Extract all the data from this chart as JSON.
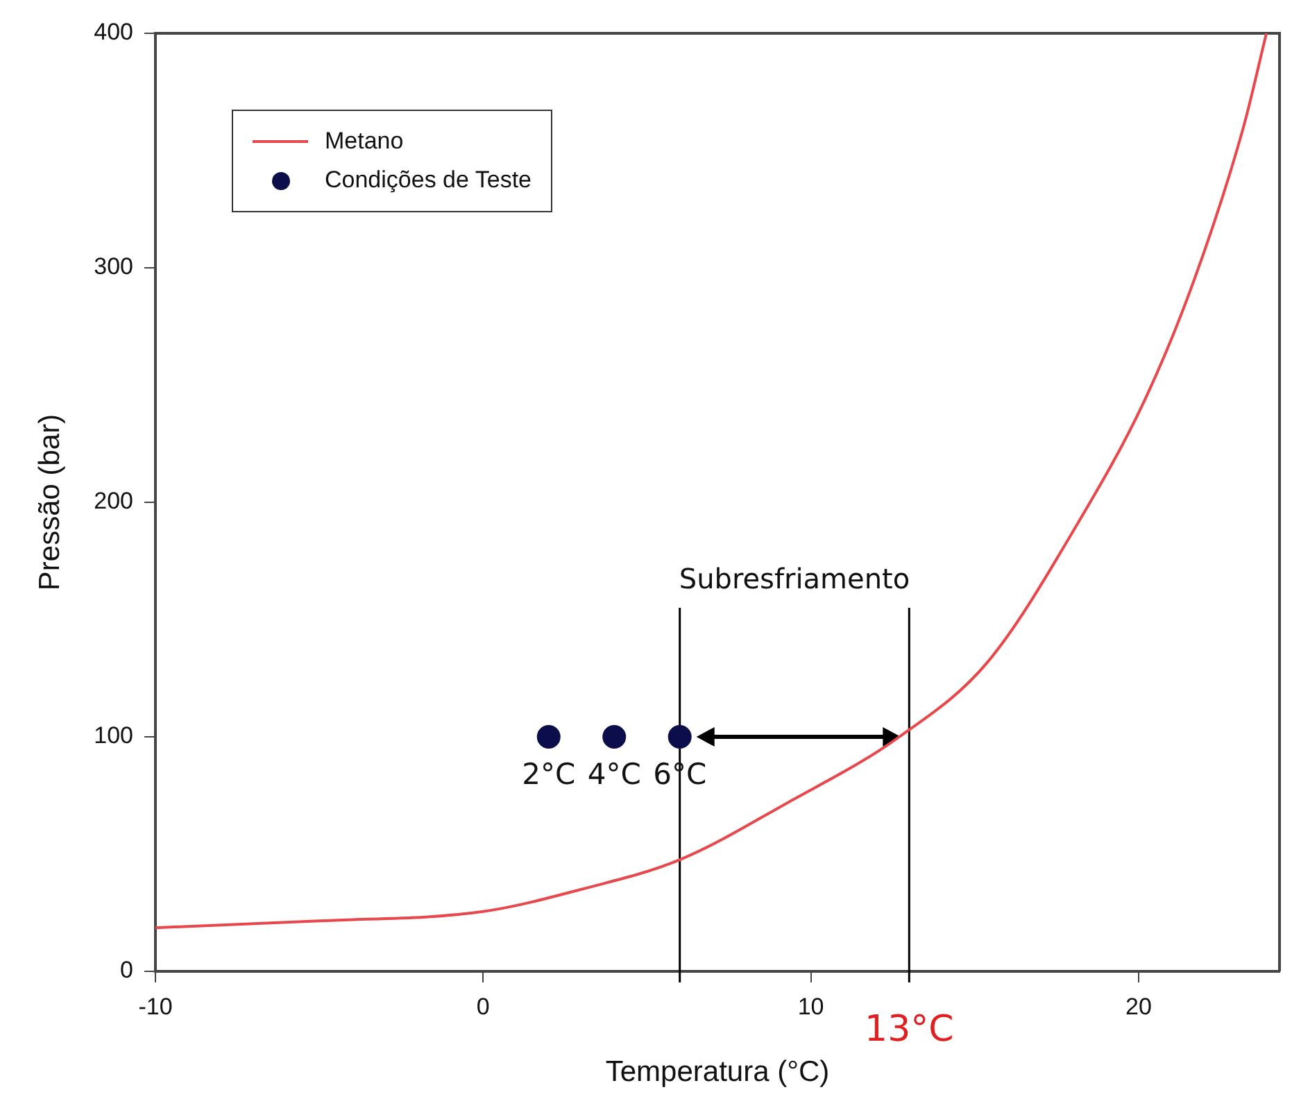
{
  "chart_data": {
    "type": "line",
    "xlabel": "Temperatura (°C)",
    "ylabel": "Pressão (bar)",
    "xlim": [
      -10,
      24.3
    ],
    "xticks": [
      -10,
      0,
      10,
      20
    ],
    "ylim": [
      0,
      400
    ],
    "yticks": [
      0,
      100,
      200,
      300,
      400
    ],
    "grid": false,
    "legend": "top left",
    "series": [
      {
        "name": "Metano",
        "type": "line",
        "color": "#e8474c",
        "marker": "none",
        "x": [
          -10,
          -5,
          0,
          3,
          6,
          9.3,
          12.7,
          15.4,
          18.1,
          20.2,
          21.7,
          23.2,
          23.9
        ],
        "values": [
          18.6,
          21.5,
          25.5,
          35,
          47.6,
          72,
          100,
          132,
          190,
          244,
          295,
          360,
          400
        ]
      },
      {
        "name": "Condições de Teste",
        "type": "scatter",
        "color": "#0b0e4a",
        "marker": "circle",
        "x": [
          2,
          4,
          6
        ],
        "values": [
          100,
          100,
          100
        ]
      }
    ],
    "ref_lines": [
      {
        "axis": "x",
        "value": 6,
        "color": "#000000"
      },
      {
        "axis": "x",
        "value": 13,
        "color": "#000000",
        "label": "13°C"
      }
    ],
    "annotations": [
      "Subresfriamento",
      {
        "text": "2°C",
        "x": 2,
        "y": 100
      },
      {
        "text": "4°C",
        "x": 4,
        "y": 100
      },
      {
        "text": "6°C",
        "x": 6,
        "y": 100
      }
    ]
  }
}
